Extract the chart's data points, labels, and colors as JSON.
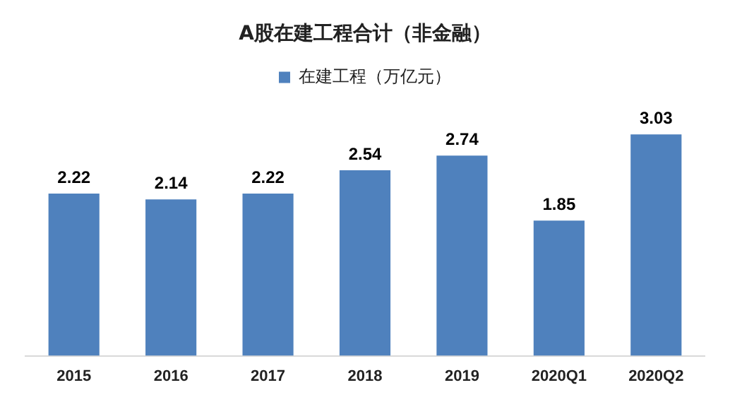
{
  "chart_data": {
    "type": "bar",
    "title": "A股在建工程合计（非金融）",
    "categories": [
      "2015",
      "2016",
      "2017",
      "2018",
      "2019",
      "2020Q1",
      "2020Q2"
    ],
    "series": [
      {
        "name": "在建工程（万亿元）",
        "color": "#4f81bd",
        "values": [
          2.22,
          2.14,
          2.22,
          2.54,
          2.74,
          1.85,
          3.03
        ]
      }
    ],
    "tick_labels": "x",
    "data_labels": true,
    "legend": "top",
    "grid": false
  }
}
